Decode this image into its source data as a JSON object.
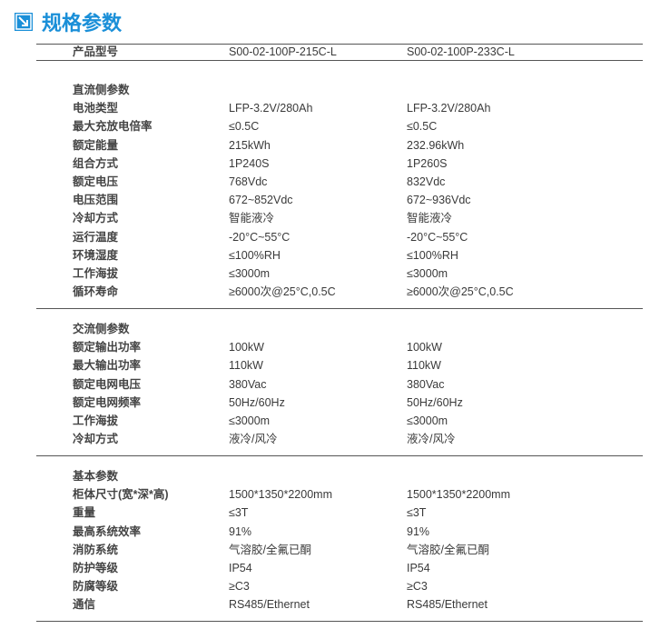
{
  "title": "规格参数",
  "header": {
    "label": "产品型号",
    "models": [
      "S00-02-100P-215C-L",
      "S00-02-100P-233C-L"
    ]
  },
  "sections": [
    {
      "heading": "直流侧参数",
      "rows": [
        [
          "电池类型",
          "LFP-3.2V/280Ah",
          "LFP-3.2V/280Ah"
        ],
        [
          "最大充放电倍率",
          "≤0.5C",
          "≤0.5C"
        ],
        [
          "额定能量",
          "215kWh",
          "232.96kWh"
        ],
        [
          "组合方式",
          "1P240S",
          "1P260S"
        ],
        [
          "额定电压",
          "768Vdc",
          "832Vdc"
        ],
        [
          "电压范围",
          "672~852Vdc",
          "672~936Vdc"
        ],
        [
          "冷却方式",
          "智能液冷",
          "智能液冷"
        ],
        [
          "运行温度",
          "-20°C~55°C",
          "-20°C~55°C"
        ],
        [
          "环境湿度",
          "≤100%RH",
          "≤100%RH"
        ],
        [
          "工作海拔",
          "≤3000m",
          "≤3000m"
        ],
        [
          "循环寿命",
          "≥6000次@25°C,0.5C",
          "≥6000次@25°C,0.5C"
        ]
      ]
    },
    {
      "heading": "交流侧参数",
      "rows": [
        [
          "额定输出功率",
          "100kW",
          "100kW"
        ],
        [
          "最大输出功率",
          "110kW",
          "110kW"
        ],
        [
          "额定电网电压",
          "380Vac",
          "380Vac"
        ],
        [
          "额定电网频率",
          "50Hz/60Hz",
          "50Hz/60Hz"
        ],
        [
          "工作海拔",
          "≤3000m",
          "≤3000m"
        ],
        [
          "冷却方式",
          "液冷/风冷",
          "液冷/风冷"
        ]
      ]
    },
    {
      "heading": "基本参数",
      "rows": [
        [
          "柜体尺寸(宽*深*高)",
          "1500*1350*2200mm",
          "1500*1350*2200mm"
        ],
        [
          "重量",
          "≤3T",
          "≤3T"
        ],
        [
          "最高系统效率",
          "91%",
          "91%"
        ],
        [
          "消防系统",
          "气溶胶/全氟已酮",
          "气溶胶/全氟已酮"
        ],
        [
          "防护等级",
          "IP54",
          "IP54"
        ],
        [
          "防腐等级",
          "≥C3",
          "≥C3"
        ],
        [
          "通信",
          "RS485/Ethernet",
          "RS485/Ethernet"
        ]
      ]
    }
  ]
}
